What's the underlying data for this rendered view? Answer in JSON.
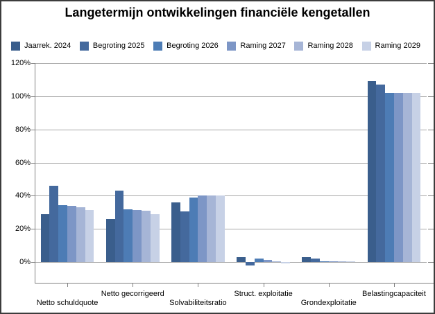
{
  "chart_data": {
    "type": "bar",
    "title": "Langetermijn ontwikkelingen financiële kengetallen",
    "categories": [
      "Netto schuldquote",
      "Netto gecorrigeerd",
      "Solvabiliteitsratio",
      "Struct. exploitatie",
      "Grondexploitatie",
      "Belastingcapaciteit"
    ],
    "series": [
      {
        "name": "Jaarrek. 2024",
        "color": "#3A5E8C",
        "values": [
          29,
          26,
          36,
          3,
          3,
          109
        ]
      },
      {
        "name": "Begroting 2025",
        "color": "#44699D",
        "values": [
          46,
          43,
          30.5,
          -2,
          2,
          107
        ]
      },
      {
        "name": "Begroting 2026",
        "color": "#4D7CB5",
        "values": [
          34.5,
          32,
          39,
          2,
          0.5,
          102
        ]
      },
      {
        "name": "Raming 2027",
        "color": "#7D96C6",
        "values": [
          34,
          31.5,
          40,
          1.5,
          0.5,
          102
        ]
      },
      {
        "name": "Raming 2028",
        "color": "#A6B5D6",
        "values": [
          33,
          31,
          40,
          0.4,
          0.5,
          102
        ]
      },
      {
        "name": "Raming 2029",
        "color": "#C7D1E6",
        "values": [
          31.5,
          29,
          40,
          -1,
          0.4,
          102
        ]
      }
    ],
    "y_axis": {
      "tick_labels": [
        "0%",
        "20%",
        "40%",
        "60%",
        "80%",
        "100%",
        "120%"
      ],
      "tick_values": [
        0,
        20,
        40,
        60,
        80,
        100,
        120
      ],
      "major_unit": 20,
      "format": "percent"
    },
    "ylim": [
      -12.5,
      120
    ],
    "grid": true,
    "legend_position": "top",
    "xlabel": "",
    "ylabel": ""
  },
  "colors": {
    "gridline": "#a6a6a6",
    "axis": "#808080",
    "text": "#000000",
    "background": "#ffffff",
    "border": "#3c3c3c"
  }
}
